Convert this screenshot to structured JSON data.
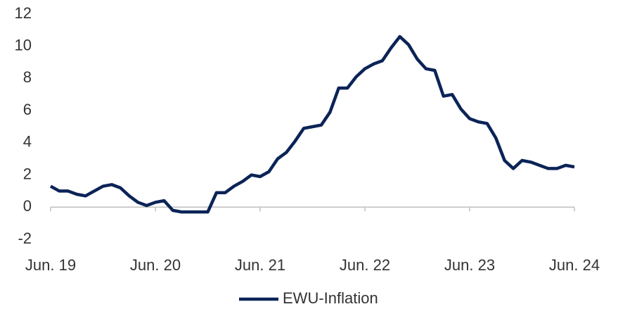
{
  "chart_data": {
    "type": "line",
    "categories": [
      "Jun. 19",
      null,
      null,
      null,
      null,
      null,
      null,
      null,
      null,
      null,
      null,
      null,
      "Jun. 20",
      null,
      null,
      null,
      null,
      null,
      null,
      null,
      null,
      null,
      null,
      null,
      "Jun. 21",
      null,
      null,
      null,
      null,
      null,
      null,
      null,
      null,
      null,
      null,
      null,
      "Jun. 22",
      null,
      null,
      null,
      null,
      null,
      null,
      null,
      null,
      null,
      null,
      null,
      "Jun. 23",
      null,
      null,
      null,
      null,
      null,
      null,
      null,
      null,
      null,
      null,
      null,
      "Jun. 24"
    ],
    "series": [
      {
        "name": "EWU-Inflation",
        "color": "#0b2357",
        "values": [
          1.3,
          1.0,
          1.0,
          0.8,
          0.7,
          1.0,
          1.3,
          1.4,
          1.2,
          0.7,
          0.3,
          0.1,
          0.3,
          0.4,
          -0.2,
          -0.3,
          -0.3,
          -0.3,
          -0.3,
          0.9,
          0.9,
          1.3,
          1.6,
          2.0,
          1.9,
          2.2,
          3.0,
          3.4,
          4.1,
          4.9,
          5.0,
          5.1,
          5.9,
          7.4,
          7.4,
          8.1,
          8.6,
          8.9,
          9.1,
          9.9,
          10.6,
          10.1,
          9.2,
          8.6,
          8.5,
          6.9,
          7.0,
          6.1,
          5.5,
          5.3,
          5.2,
          4.3,
          2.9,
          2.4,
          2.9,
          2.8,
          2.6,
          2.4,
          2.4,
          2.6,
          2.5
        ]
      }
    ],
    "ylim": [
      -2,
      12
    ],
    "yticks": [
      -2,
      0,
      2,
      4,
      6,
      8,
      10,
      12
    ],
    "grid": false,
    "legend": "bottom"
  }
}
